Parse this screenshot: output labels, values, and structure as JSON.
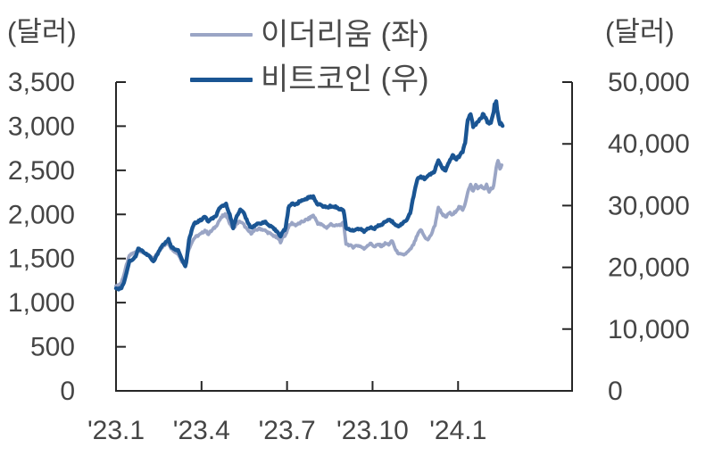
{
  "chart_data": {
    "type": "line",
    "title": "",
    "grid": false,
    "legend_position": "top-center",
    "colors": {
      "axis_line": "#262626",
      "tick_text": "#454545"
    },
    "x_axis": {
      "range_months": [
        0,
        16
      ],
      "ticks": [
        {
          "label": "'23.1",
          "month": 0
        },
        {
          "label": "'23.4",
          "month": 3
        },
        {
          "label": "'23.7",
          "month": 6
        },
        {
          "label": "'23.10",
          "month": 9
        },
        {
          "label": "'24.1",
          "month": 12
        }
      ]
    },
    "left_axis": {
      "unit": "(달러)",
      "range": [
        0,
        3500
      ],
      "ticks": [
        "0",
        "500",
        "1,000",
        "1,500",
        "2,000",
        "2,500",
        "3,000",
        "3,500"
      ]
    },
    "right_axis": {
      "unit": "(달러)",
      "range": [
        0,
        50000
      ],
      "ticks": [
        "0",
        "10,000",
        "20,000",
        "30,000",
        "40,000",
        "50,000"
      ]
    },
    "series": [
      {
        "name": "이더리움 (좌)",
        "axis": "left",
        "color": "#9AA5C5",
        "points": [
          [
            0.0,
            1190
          ],
          [
            0.09,
            1195
          ],
          [
            0.19,
            1230
          ],
          [
            0.28,
            1320
          ],
          [
            0.37,
            1430
          ],
          [
            0.47,
            1530
          ],
          [
            0.59,
            1560
          ],
          [
            0.69,
            1570
          ],
          [
            0.78,
            1600
          ],
          [
            0.9,
            1580
          ],
          [
            1.0,
            1560
          ],
          [
            1.15,
            1530
          ],
          [
            1.31,
            1500
          ],
          [
            1.43,
            1550
          ],
          [
            1.53,
            1600
          ],
          [
            1.62,
            1630
          ],
          [
            1.71,
            1650
          ],
          [
            1.84,
            1680
          ],
          [
            1.93,
            1620
          ],
          [
            2.06,
            1580
          ],
          [
            2.18,
            1550
          ],
          [
            2.31,
            1470
          ],
          [
            2.43,
            1430
          ],
          [
            2.49,
            1520
          ],
          [
            2.56,
            1610
          ],
          [
            2.65,
            1680
          ],
          [
            2.74,
            1730
          ],
          [
            2.87,
            1760
          ],
          [
            2.99,
            1780
          ],
          [
            3.12,
            1820
          ],
          [
            3.24,
            1780
          ],
          [
            3.37,
            1820
          ],
          [
            3.49,
            1860
          ],
          [
            3.62,
            1930
          ],
          [
            3.74,
            1980
          ],
          [
            3.86,
            2000
          ],
          [
            3.99,
            1900
          ],
          [
            4.11,
            1840
          ],
          [
            4.24,
            1900
          ],
          [
            4.36,
            1920
          ],
          [
            4.49,
            1880
          ],
          [
            4.61,
            1820
          ],
          [
            4.74,
            1790
          ],
          [
            4.89,
            1820
          ],
          [
            5.05,
            1840
          ],
          [
            5.21,
            1820
          ],
          [
            5.36,
            1790
          ],
          [
            5.52,
            1760
          ],
          [
            5.67,
            1730
          ],
          [
            5.77,
            1690
          ],
          [
            5.86,
            1740
          ],
          [
            5.95,
            1770
          ],
          [
            6.05,
            1860
          ],
          [
            6.17,
            1900
          ],
          [
            6.3,
            1880
          ],
          [
            6.45,
            1900
          ],
          [
            6.61,
            1930
          ],
          [
            6.76,
            1950
          ],
          [
            6.92,
            1990
          ],
          [
            7.08,
            1900
          ],
          [
            7.23,
            1880
          ],
          [
            7.39,
            1850
          ],
          [
            7.54,
            1890
          ],
          [
            7.7,
            1870
          ],
          [
            7.86,
            1880
          ],
          [
            7.98,
            1900
          ],
          [
            8.07,
            1670
          ],
          [
            8.2,
            1650
          ],
          [
            8.32,
            1630
          ],
          [
            8.45,
            1650
          ],
          [
            8.57,
            1640
          ],
          [
            8.7,
            1610
          ],
          [
            8.82,
            1650
          ],
          [
            8.95,
            1670
          ],
          [
            9.07,
            1630
          ],
          [
            9.2,
            1660
          ],
          [
            9.32,
            1640
          ],
          [
            9.44,
            1670
          ],
          [
            9.57,
            1660
          ],
          [
            9.69,
            1700
          ],
          [
            9.82,
            1590
          ],
          [
            9.94,
            1550
          ],
          [
            10.07,
            1540
          ],
          [
            10.19,
            1560
          ],
          [
            10.32,
            1600
          ],
          [
            10.44,
            1660
          ],
          [
            10.57,
            1760
          ],
          [
            10.69,
            1830
          ],
          [
            10.82,
            1750
          ],
          [
            10.94,
            1710
          ],
          [
            11.07,
            1780
          ],
          [
            11.19,
            1880
          ],
          [
            11.31,
            2080
          ],
          [
            11.44,
            2010
          ],
          [
            11.56,
            1960
          ],
          [
            11.69,
            2020
          ],
          [
            11.81,
            1990
          ],
          [
            11.94,
            2050
          ],
          [
            12.06,
            2090
          ],
          [
            12.16,
            2040
          ],
          [
            12.25,
            2130
          ],
          [
            12.34,
            2260
          ],
          [
            12.44,
            2330
          ],
          [
            12.53,
            2260
          ],
          [
            12.62,
            2340
          ],
          [
            12.72,
            2290
          ],
          [
            12.81,
            2330
          ],
          [
            12.9,
            2280
          ],
          [
            13.0,
            2330
          ],
          [
            13.09,
            2250
          ],
          [
            13.15,
            2300
          ],
          [
            13.22,
            2290
          ],
          [
            13.28,
            2400
          ],
          [
            13.34,
            2520
          ],
          [
            13.4,
            2600
          ],
          [
            13.47,
            2530
          ],
          [
            13.53,
            2560
          ]
        ]
      },
      {
        "name": "비트코인 (우)",
        "axis": "right",
        "color": "#1A5593",
        "points": [
          [
            0.0,
            16600
          ],
          [
            0.09,
            16500
          ],
          [
            0.19,
            16700
          ],
          [
            0.28,
            17600
          ],
          [
            0.37,
            19200
          ],
          [
            0.47,
            21000
          ],
          [
            0.59,
            21300
          ],
          [
            0.69,
            21800
          ],
          [
            0.78,
            23000
          ],
          [
            0.9,
            22800
          ],
          [
            1.0,
            22300
          ],
          [
            1.15,
            21900
          ],
          [
            1.31,
            20900
          ],
          [
            1.43,
            21900
          ],
          [
            1.53,
            22900
          ],
          [
            1.62,
            23500
          ],
          [
            1.71,
            23900
          ],
          [
            1.84,
            24500
          ],
          [
            1.93,
            23300
          ],
          [
            2.06,
            23000
          ],
          [
            2.18,
            22700
          ],
          [
            2.31,
            21300
          ],
          [
            2.43,
            20100
          ],
          [
            2.49,
            21600
          ],
          [
            2.56,
            24400
          ],
          [
            2.65,
            25900
          ],
          [
            2.74,
            27100
          ],
          [
            2.87,
            27400
          ],
          [
            2.99,
            27700
          ],
          [
            3.12,
            28200
          ],
          [
            3.24,
            27400
          ],
          [
            3.37,
            27900
          ],
          [
            3.49,
            28200
          ],
          [
            3.62,
            29400
          ],
          [
            3.74,
            30000
          ],
          [
            3.86,
            30200
          ],
          [
            3.99,
            28600
          ],
          [
            4.11,
            26400
          ],
          [
            4.24,
            28400
          ],
          [
            4.36,
            29300
          ],
          [
            4.49,
            28800
          ],
          [
            4.61,
            27300
          ],
          [
            4.74,
            26400
          ],
          [
            4.89,
            26900
          ],
          [
            5.05,
            27100
          ],
          [
            5.21,
            27400
          ],
          [
            5.36,
            26800
          ],
          [
            5.52,
            26300
          ],
          [
            5.67,
            25700
          ],
          [
            5.77,
            25100
          ],
          [
            5.86,
            25800
          ],
          [
            5.95,
            26300
          ],
          [
            6.05,
            29700
          ],
          [
            6.17,
            30400
          ],
          [
            6.3,
            30100
          ],
          [
            6.45,
            30700
          ],
          [
            6.61,
            31000
          ],
          [
            6.76,
            31300
          ],
          [
            6.92,
            31400
          ],
          [
            7.08,
            30200
          ],
          [
            7.23,
            30000
          ],
          [
            7.39,
            29700
          ],
          [
            7.54,
            29900
          ],
          [
            7.7,
            29800
          ],
          [
            7.86,
            29400
          ],
          [
            7.98,
            29300
          ],
          [
            8.07,
            26400
          ],
          [
            8.2,
            26100
          ],
          [
            8.32,
            26000
          ],
          [
            8.45,
            26200
          ],
          [
            8.57,
            26200
          ],
          [
            8.7,
            25800
          ],
          [
            8.82,
            26200
          ],
          [
            8.95,
            26500
          ],
          [
            9.07,
            26300
          ],
          [
            9.2,
            26700
          ],
          [
            9.32,
            26900
          ],
          [
            9.44,
            27400
          ],
          [
            9.57,
            27700
          ],
          [
            9.69,
            27400
          ],
          [
            9.82,
            26900
          ],
          [
            9.94,
            26700
          ],
          [
            10.07,
            27200
          ],
          [
            10.19,
            27700
          ],
          [
            10.32,
            28800
          ],
          [
            10.44,
            31600
          ],
          [
            10.57,
            34200
          ],
          [
            10.69,
            34700
          ],
          [
            10.82,
            34400
          ],
          [
            10.94,
            34800
          ],
          [
            11.07,
            35100
          ],
          [
            11.19,
            35700
          ],
          [
            11.31,
            37400
          ],
          [
            11.44,
            36100
          ],
          [
            11.56,
            35800
          ],
          [
            11.69,
            37000
          ],
          [
            11.81,
            38200
          ],
          [
            11.94,
            37500
          ],
          [
            12.06,
            38100
          ],
          [
            12.16,
            38700
          ],
          [
            12.25,
            40300
          ],
          [
            12.34,
            43900
          ],
          [
            12.44,
            44700
          ],
          [
            12.53,
            42800
          ],
          [
            12.62,
            43200
          ],
          [
            12.72,
            43600
          ],
          [
            12.81,
            44300
          ],
          [
            12.9,
            44800
          ],
          [
            13.0,
            43800
          ],
          [
            13.09,
            43100
          ],
          [
            13.15,
            43600
          ],
          [
            13.22,
            44500
          ],
          [
            13.28,
            46300
          ],
          [
            13.34,
            46900
          ],
          [
            13.4,
            44600
          ],
          [
            13.47,
            43200
          ],
          [
            13.53,
            43400
          ],
          [
            13.56,
            42900
          ]
        ]
      }
    ]
  }
}
